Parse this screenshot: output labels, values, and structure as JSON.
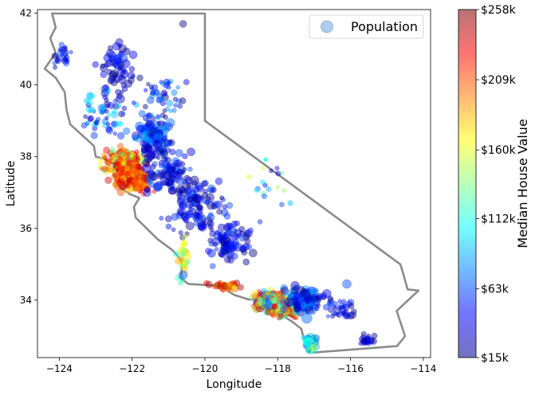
{
  "chart_data": {
    "type": "scatter",
    "xlabel": "Longitude",
    "ylabel": "Latitude",
    "xlim": [
      -124.6,
      -113.8
    ],
    "ylim": [
      32.4,
      42.1
    ],
    "xticks": [
      -124,
      -122,
      -120,
      -118,
      -116,
      -114
    ],
    "yticks": [
      34,
      36,
      38,
      40,
      42
    ],
    "xtick_labels": [
      "−124",
      "−122",
      "−120",
      "−118",
      "−116",
      "−114"
    ],
    "ytick_labels": [
      "34",
      "36",
      "38",
      "40",
      "42"
    ],
    "grid": false,
    "legend": {
      "entries": [
        "Population"
      ],
      "placement": "top-right"
    },
    "colorbar": {
      "label": "Median House Value",
      "colormap": "jet",
      "range": [
        15000,
        258000
      ],
      "tick_values": [
        15000,
        63000,
        112000,
        160000,
        209000,
        258000
      ],
      "tick_labels": [
        "$15k",
        "$63k",
        "$112k",
        "$160k",
        "$209k",
        "$258k"
      ]
    },
    "state_outline": [
      [
        -124.2,
        41.99
      ],
      [
        -120.0,
        41.99
      ],
      [
        -120.0,
        39.0
      ],
      [
        -114.63,
        35.0
      ],
      [
        -114.57,
        34.8
      ],
      [
        -114.43,
        34.3
      ],
      [
        -114.13,
        34.27
      ],
      [
        -114.73,
        33.7
      ],
      [
        -114.5,
        33.0
      ],
      [
        -114.72,
        32.72
      ],
      [
        -117.12,
        32.53
      ],
      [
        -117.25,
        32.8
      ],
      [
        -117.35,
        33.2
      ],
      [
        -117.6,
        33.4
      ],
      [
        -118.0,
        33.65
      ],
      [
        -118.4,
        33.85
      ],
      [
        -118.5,
        34.02
      ],
      [
        -118.8,
        34.02
      ],
      [
        -119.2,
        34.15
      ],
      [
        -119.6,
        34.4
      ],
      [
        -120.45,
        34.45
      ],
      [
        -120.65,
        34.6
      ],
      [
        -120.63,
        35.1
      ],
      [
        -120.9,
        35.4
      ],
      [
        -121.3,
        35.7
      ],
      [
        -121.9,
        36.3
      ],
      [
        -121.95,
        36.6
      ],
      [
        -121.8,
        36.85
      ],
      [
        -122.05,
        36.95
      ],
      [
        -122.4,
        37.2
      ],
      [
        -122.52,
        37.6
      ],
      [
        -122.5,
        37.8
      ],
      [
        -122.8,
        37.95
      ],
      [
        -123.0,
        38.0
      ],
      [
        -123.05,
        38.3
      ],
      [
        -123.7,
        38.9
      ],
      [
        -123.8,
        39.3
      ],
      [
        -123.85,
        39.8
      ],
      [
        -124.1,
        40.2
      ],
      [
        -124.4,
        40.45
      ],
      [
        -124.1,
        40.9
      ],
      [
        -124.25,
        41.3
      ],
      [
        -124.1,
        41.6
      ],
      [
        -124.2,
        41.99
      ]
    ],
    "clusters": [
      {
        "center": [
          -122.1,
          37.6
        ],
        "spread": [
          0.35,
          0.45
        ],
        "count": 170,
        "value": [
          170000,
          258000
        ],
        "pop": [
          1,
          4
        ]
      },
      {
        "center": [
          -122.3,
          37.9
        ],
        "spread": [
          0.5,
          0.3
        ],
        "count": 90,
        "value": [
          120000,
          240000
        ],
        "pop": [
          1,
          3
        ]
      },
      {
        "center": [
          -121.8,
          37.3
        ],
        "spread": [
          0.25,
          0.25
        ],
        "count": 70,
        "value": [
          180000,
          258000
        ],
        "pop": [
          1,
          3
        ]
      },
      {
        "center": [
          -121.4,
          38.6
        ],
        "spread": [
          0.35,
          0.35
        ],
        "count": 130,
        "value": [
          20000,
          90000
        ],
        "pop": [
          1,
          4
        ]
      },
      {
        "center": [
          -121.0,
          37.6
        ],
        "spread": [
          0.55,
          0.5
        ],
        "count": 100,
        "value": [
          15000,
          70000
        ],
        "pop": [
          1,
          4
        ]
      },
      {
        "center": [
          -120.2,
          36.6
        ],
        "spread": [
          0.6,
          0.6
        ],
        "count": 110,
        "value": [
          15000,
          65000
        ],
        "pop": [
          1,
          4
        ]
      },
      {
        "center": [
          -119.3,
          35.6
        ],
        "spread": [
          0.5,
          0.45
        ],
        "count": 90,
        "value": [
          15000,
          60000
        ],
        "pop": [
          1,
          4
        ]
      },
      {
        "center": [
          -122.4,
          40.4
        ],
        "spread": [
          0.4,
          0.6
        ],
        "count": 60,
        "value": [
          15000,
          60000
        ],
        "pop": [
          1,
          4
        ]
      },
      {
        "center": [
          -123.9,
          40.8
        ],
        "spread": [
          0.2,
          0.3
        ],
        "count": 25,
        "value": [
          15000,
          60000
        ],
        "pop": [
          1,
          3
        ]
      },
      {
        "center": [
          -122.8,
          39.2
        ],
        "spread": [
          0.5,
          0.6
        ],
        "count": 60,
        "value": [
          20000,
          110000
        ],
        "pop": [
          1,
          3
        ]
      },
      {
        "center": [
          -121.2,
          39.6
        ],
        "spread": [
          0.5,
          0.5
        ],
        "count": 50,
        "value": [
          15000,
          90000
        ],
        "pop": [
          1,
          3
        ]
      },
      {
        "center": [
          -118.2,
          34.0
        ],
        "spread": [
          0.35,
          0.2
        ],
        "count": 220,
        "value": [
          60000,
          258000
        ],
        "pop": [
          1,
          4
        ]
      },
      {
        "center": [
          -117.8,
          33.7
        ],
        "spread": [
          0.3,
          0.15
        ],
        "count": 120,
        "value": [
          110000,
          258000
        ],
        "pop": [
          1,
          3
        ]
      },
      {
        "center": [
          -117.3,
          34.0
        ],
        "spread": [
          0.4,
          0.25
        ],
        "count": 120,
        "value": [
          15000,
          90000
        ],
        "pop": [
          1,
          4
        ]
      },
      {
        "center": [
          -117.1,
          32.8
        ],
        "spread": [
          0.12,
          0.2
        ],
        "count": 70,
        "value": [
          60000,
          160000
        ],
        "pop": [
          1,
          4
        ]
      },
      {
        "center": [
          -119.4,
          34.4
        ],
        "spread": [
          0.4,
          0.1
        ],
        "count": 40,
        "value": [
          160000,
          258000
        ],
        "pop": [
          1,
          3
        ]
      },
      {
        "center": [
          -120.6,
          35.1
        ],
        "spread": [
          0.15,
          0.5
        ],
        "count": 35,
        "value": [
          110000,
          190000
        ],
        "pop": [
          1,
          3
        ]
      },
      {
        "center": [
          -116.3,
          33.8
        ],
        "spread": [
          0.4,
          0.25
        ],
        "count": 40,
        "value": [
          15000,
          60000
        ],
        "pop": [
          1,
          3
        ]
      },
      {
        "center": [
          -115.5,
          32.9
        ],
        "spread": [
          0.2,
          0.15
        ],
        "count": 20,
        "value": [
          15000,
          50000
        ],
        "pop": [
          1,
          3
        ]
      },
      {
        "center": [
          -118.0,
          37.0
        ],
        "spread": [
          0.6,
          0.8
        ],
        "count": 20,
        "value": [
          15000,
          160000
        ],
        "pop": [
          1,
          2
        ]
      }
    ],
    "highlight_points": [
      {
        "lon": -116.1,
        "lat": 34.45,
        "value": 63000,
        "pop": 4
      },
      {
        "lon": -120.6,
        "lat": 34.7,
        "value": 63000,
        "pop": 4
      },
      {
        "lon": -120.6,
        "lat": 41.7,
        "value": 15000,
        "pop": 3
      },
      {
        "lon": -117.2,
        "lat": 33.5,
        "value": 70000,
        "pop": 5
      }
    ]
  }
}
